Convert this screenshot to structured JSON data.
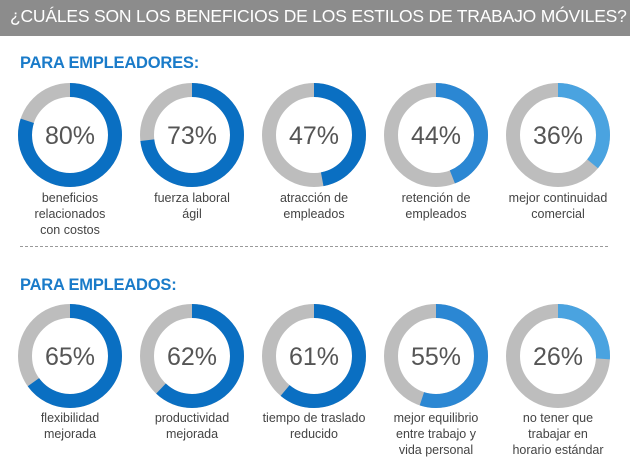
{
  "header": {
    "title": "¿CUÁLES SON LOS BENEFICIOS DE LOS ESTILOS DE TRABAJO MÓVILES?"
  },
  "colors": {
    "header_bg": "#8c8c8c",
    "track": "#bdbdbd",
    "dark_blue": "#0a6fc2",
    "light_blue": "#4aa3e0",
    "section_title": "#1a7bc9",
    "value_text": "#555555",
    "label_text": "#444444"
  },
  "sections": [
    {
      "title": "PARA EMPLEADORES:"
    },
    {
      "title": "PARA EMPLEADOS:"
    }
  ],
  "chart_data": [
    {
      "type": "donut",
      "title": "PARA EMPLEADORES:",
      "unit": "%",
      "categories": [
        "beneficios relacionados con costos",
        "fuerza laboral ágil",
        "atracción de empleados",
        "retención de empleados",
        "mejor continuidad comercial"
      ],
      "values": [
        80,
        73,
        47,
        44,
        36
      ],
      "value_labels": [
        "80%",
        "73%",
        "47%",
        "44%",
        "36%"
      ],
      "label_lines": [
        [
          "beneficios",
          "relacionados",
          "con costos"
        ],
        [
          "fuerza laboral",
          "ágil"
        ],
        [
          "atracción de",
          "empleados"
        ],
        [
          "retención de",
          "empleados"
        ],
        [
          "mejor continuidad",
          "comercial"
        ]
      ],
      "colors": [
        "#0a6fc2",
        "#0a6fc2",
        "#0a6fc2",
        "#2b87d3",
        "#4aa3e0"
      ],
      "track_color": "#bdbdbd"
    },
    {
      "type": "donut",
      "title": "PARA EMPLEADOS:",
      "unit": "%",
      "categories": [
        "flexibilidad mejorada",
        "productividad mejorada",
        "tiempo de traslado reducido",
        "mejor equilibrio entre trabajo y vida personal",
        "no tener que trabajar en horario estándar"
      ],
      "values": [
        65,
        62,
        61,
        55,
        26
      ],
      "value_labels": [
        "65%",
        "62%",
        "61%",
        "55%",
        "26%"
      ],
      "label_lines": [
        [
          "flexibilidad",
          "mejorada"
        ],
        [
          "productividad",
          "mejorada"
        ],
        [
          "tiempo de traslado",
          "reducido"
        ],
        [
          "mejor equilibrio",
          "entre trabajo y",
          "vida personal"
        ],
        [
          "no tener que",
          "trabajar en",
          "horario estándar"
        ]
      ],
      "colors": [
        "#0a6fc2",
        "#0a6fc2",
        "#0a6fc2",
        "#2b87d3",
        "#4aa3e0"
      ],
      "track_color": "#bdbdbd"
    }
  ]
}
